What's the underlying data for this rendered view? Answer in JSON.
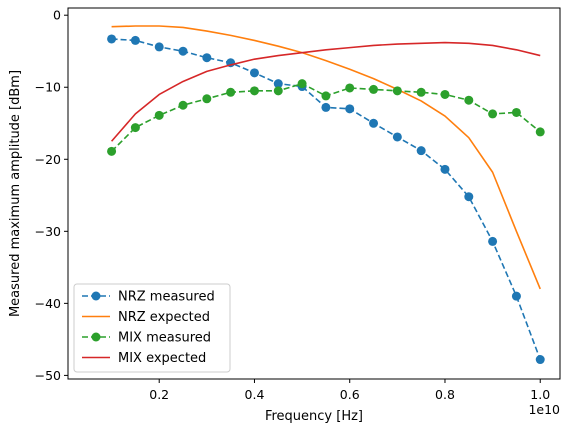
{
  "chart_data": {
    "type": "line",
    "xlabel": "Frequency [Hz]",
    "ylabel": "Measured maximum amplitude [dBm]",
    "x_offset_label": "1e10",
    "xlim": [
      0.0085,
      1.0415
    ],
    "ylim": [
      -50.5,
      1
    ],
    "x_ticks": [
      0.2,
      0.4,
      0.6,
      0.8,
      1.0
    ],
    "x_tick_labels": [
      "0.2",
      "0.4",
      "0.6",
      "0.8",
      "1.0"
    ],
    "y_ticks": [
      0,
      -10,
      -20,
      -30,
      -40,
      -50
    ],
    "y_tick_labels": [
      "0",
      "−10",
      "−20",
      "−30",
      "−40",
      "−50"
    ],
    "grid": false,
    "legend_position": "lower-left",
    "x": [
      0.1,
      0.15,
      0.2,
      0.25,
      0.3,
      0.35,
      0.4,
      0.45,
      0.5,
      0.55,
      0.6,
      0.65,
      0.7,
      0.75,
      0.8,
      0.85,
      0.9,
      0.95,
      1.0
    ],
    "series": [
      {
        "name": "NRZ measured",
        "color": "#1f77b4",
        "style": "dashed-markers",
        "values": [
          -3.3,
          -3.5,
          -4.4,
          -5.0,
          -5.9,
          -6.6,
          -8.0,
          -9.5,
          -9.9,
          -12.8,
          -13.0,
          -15.0,
          -16.9,
          -18.8,
          -21.4,
          -25.2,
          -31.4,
          -39.0,
          -47.8
        ]
      },
      {
        "name": "NRZ expected",
        "color": "#ff7f0e",
        "style": "solid",
        "values": [
          -1.6,
          -1.5,
          -1.5,
          -1.7,
          -2.2,
          -2.8,
          -3.5,
          -4.3,
          -5.2,
          -6.3,
          -7.5,
          -8.8,
          -10.3,
          -11.9,
          -14.0,
          -17.0,
          -21.8,
          -30.0,
          -38.0
        ]
      },
      {
        "name": "MIX measured",
        "color": "#2ca02c",
        "style": "dashed-markers",
        "values": [
          -18.9,
          -15.6,
          -13.9,
          -12.5,
          -11.6,
          -10.7,
          -10.5,
          -10.5,
          -9.5,
          -11.2,
          -10.1,
          -10.3,
          -10.5,
          -10.7,
          -11.0,
          -11.8,
          -13.7,
          -13.5,
          -16.2
        ]
      },
      {
        "name": "MIX expected",
        "color": "#d62728",
        "style": "solid",
        "values": [
          -17.5,
          -13.7,
          -11.0,
          -9.2,
          -7.8,
          -6.9,
          -6.1,
          -5.6,
          -5.2,
          -4.8,
          -4.5,
          -4.2,
          -4.0,
          -3.9,
          -3.8,
          -3.9,
          -4.2,
          -4.8,
          -5.6
        ]
      }
    ]
  }
}
